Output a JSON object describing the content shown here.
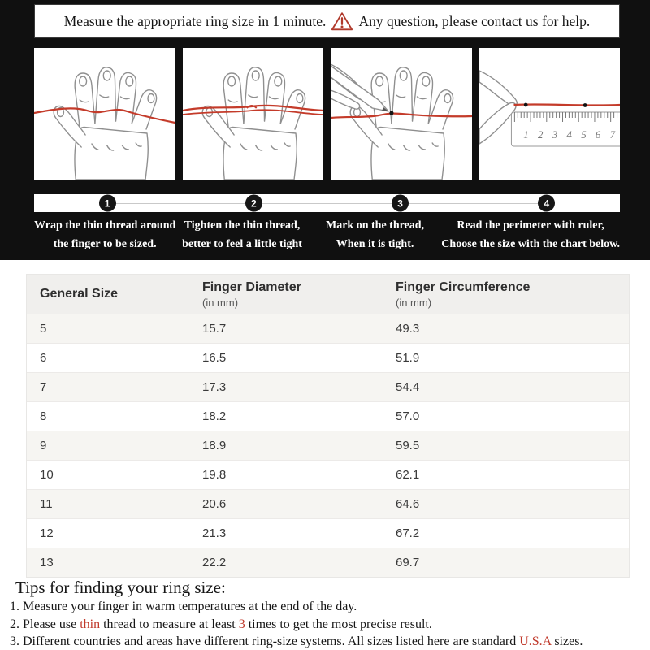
{
  "banner": {
    "text_before_icon": "Measure the appropriate ring size in 1 minute.",
    "text_after_icon": "Any question, please contact us for help.",
    "warning_icon": "warning-triangle-icon"
  },
  "steps": [
    {
      "number": "1",
      "caption_line1": "Wrap the thin thread around",
      "caption_line2": "the finger to be sized.",
      "illustration": "hand-with-thread-wrapped"
    },
    {
      "number": "2",
      "caption_line1": "Tighten the thin thread,",
      "caption_line2": "better to feel a little tight",
      "illustration": "hand-thread-tightened"
    },
    {
      "number": "3",
      "caption_line1": "Mark on the thread,",
      "caption_line2": "When it is tight.",
      "illustration": "hand-marking-thread-with-pen"
    },
    {
      "number": "4",
      "caption_line1": "Read the perimeter with ruler,",
      "caption_line2": "Choose the size with the chart below.",
      "illustration": "thread-measured-on-ruler"
    }
  ],
  "ruler_numbers": [
    "1",
    "2",
    "3",
    "4",
    "5",
    "6",
    "7"
  ],
  "size_chart": {
    "columns": [
      {
        "title": "General Size",
        "subtitle": ""
      },
      {
        "title": "Finger Diameter",
        "subtitle": "(in mm)"
      },
      {
        "title": "Finger Circumference",
        "subtitle": "(in mm)"
      }
    ],
    "rows": [
      [
        "5",
        "15.7",
        "49.3"
      ],
      [
        "6",
        "16.5",
        "51.9"
      ],
      [
        "7",
        "17.3",
        "54.4"
      ],
      [
        "8",
        "18.2",
        "57.0"
      ],
      [
        "9",
        "18.9",
        "59.5"
      ],
      [
        "10",
        "19.8",
        "62.1"
      ],
      [
        "11",
        "20.6",
        "64.6"
      ],
      [
        "12",
        "21.3",
        "67.2"
      ],
      [
        "13",
        "22.2",
        "69.7"
      ]
    ]
  },
  "tips": {
    "heading": "Tips for finding your ring size:",
    "items": [
      [
        {
          "text": "1. Measure your finger in warm temperatures at the end of the day."
        }
      ],
      [
        {
          "text": "2. Please use "
        },
        {
          "text": "thin",
          "red": true
        },
        {
          "text": " thread to measure at least "
        },
        {
          "text": "3",
          "red": true
        },
        {
          "text": " times to get the most precise result."
        }
      ],
      [
        {
          "text": "3. Different countries and areas have different ring-size systems. All sizes listed here are standard "
        },
        {
          "text": "U.S.A",
          "red": true
        },
        {
          "text": " sizes."
        }
      ]
    ]
  },
  "colors": {
    "background_black": "#101010",
    "accent_red": "#b0392b",
    "thread_red": "#c43b2a",
    "step_circle_black": "#161616",
    "table_header_bg": "#f0efed",
    "table_row_alt_bg": "#f6f5f2",
    "table_border": "#e8e7e5"
  }
}
